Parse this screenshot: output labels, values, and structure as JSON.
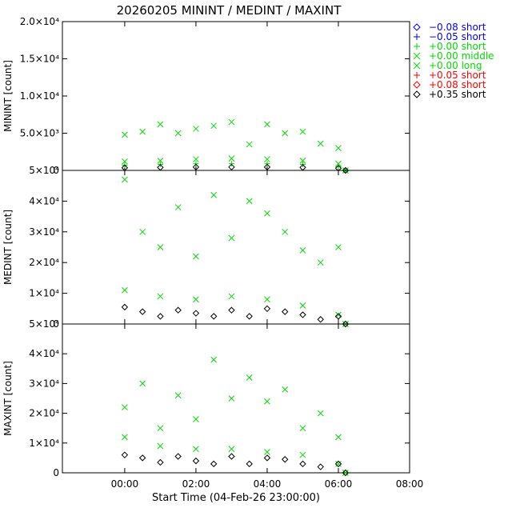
{
  "chart_data": {
    "type": "scatter",
    "title": "20260205 MININT / MEDINT / MAXINT",
    "xlabel": "Start Time (04-Feb-26 23:00:00)",
    "xlim": [
      -0.75,
      9.0
    ],
    "x_ticks": [
      {
        "value": 1,
        "label": "00:00"
      },
      {
        "value": 3,
        "label": "02:00"
      },
      {
        "value": 5,
        "label": "04:00"
      },
      {
        "value": 7,
        "label": "06:00"
      },
      {
        "value": 9,
        "label": "08:00"
      }
    ],
    "legend": {
      "placement": "right",
      "entries": [
        {
          "marker": "diamond",
          "color": "#0000ff",
          "label": "−0.08 short"
        },
        {
          "marker": "plus",
          "color": "#0000ff",
          "label": "−0.05 short"
        },
        {
          "marker": "plus",
          "color": "#00dd00",
          "label": "+0.00 short"
        },
        {
          "marker": "x",
          "color": "#00dd00",
          "label": "+0.00 middle"
        },
        {
          "marker": "x",
          "color": "#00dd00",
          "label": "+0.00 long"
        },
        {
          "marker": "plus",
          "color": "#ff0000",
          "label": "+0.05 short"
        },
        {
          "marker": "diamond",
          "color": "#ff0000",
          "label": "+0.08 short"
        },
        {
          "marker": "diamond",
          "color": "#000000",
          "label": "+0.35 short"
        }
      ]
    },
    "panels": [
      {
        "ylabel": "MININT [count]",
        "ylim": [
          0,
          20000
        ],
        "y_ticks": [
          {
            "value": 0,
            "label": "0"
          },
          {
            "value": 5000,
            "label": "5.0×10³"
          },
          {
            "value": 10000,
            "label": "1.0×10⁴"
          },
          {
            "value": 15000,
            "label": "1.5×10⁴"
          },
          {
            "value": 20000,
            "label": "2.0×10⁴"
          }
        ],
        "series": [
          {
            "name": "+0.00 long",
            "marker": "x",
            "color": "#00dd00",
            "x": [
              1.0,
              1.5,
              2.0,
              2.5,
              3.0,
              3.5,
              4.0,
              4.5,
              5.0,
              5.5,
              6.0,
              6.5,
              7.0,
              7.2
            ],
            "values": [
              4800,
              5200,
              6200,
              5000,
              5600,
              6000,
              6500,
              3500,
              6200,
              5000,
              5200,
              3600,
              3000,
              0
            ]
          },
          {
            "name": "+0.00 middle",
            "marker": "x",
            "color": "#00dd00",
            "x": [
              1.0,
              2.0,
              3.0,
              4.0,
              5.0,
              6.0,
              7.0,
              7.2
            ],
            "values": [
              1200,
              1300,
              1500,
              1600,
              1500,
              1300,
              900,
              0
            ]
          },
          {
            "name": "+0.00 short",
            "marker": "plus",
            "color": "#00dd00",
            "x": [
              1.0,
              2.0,
              3.0,
              4.0,
              5.0,
              6.0,
              7.0,
              7.2
            ],
            "values": [
              700,
              800,
              900,
              900,
              900,
              800,
              500,
              0
            ]
          },
          {
            "name": "+0.35 short",
            "marker": "diamond",
            "color": "#000000",
            "x": [
              1.0,
              2.0,
              3.0,
              4.0,
              5.0,
              6.0,
              7.0,
              7.2
            ],
            "values": [
              350,
              400,
              450,
              450,
              450,
              400,
              300,
              0
            ]
          }
        ]
      },
      {
        "ylabel": "MEDINT [count]",
        "ylim": [
          0,
          50000
        ],
        "y_ticks": [
          {
            "value": 0,
            "label": "0"
          },
          {
            "value": 10000,
            "label": "1×10⁴"
          },
          {
            "value": 20000,
            "label": "2×10⁴"
          },
          {
            "value": 30000,
            "label": "3×10⁴"
          },
          {
            "value": 40000,
            "label": "4×10⁴"
          },
          {
            "value": 50000,
            "label": "5×10⁴"
          }
        ],
        "series": [
          {
            "name": "+0.00 long",
            "marker": "x",
            "color": "#00dd00",
            "x": [
              1.0,
              1.5,
              2.0,
              2.5,
              3.0,
              3.5,
              4.0,
              4.5,
              5.0,
              5.5,
              6.0,
              6.5,
              7.0,
              7.2
            ],
            "values": [
              47000,
              30000,
              25000,
              38000,
              22000,
              42000,
              28000,
              40000,
              36000,
              30000,
              24000,
              20000,
              25000,
              0
            ]
          },
          {
            "name": "+0.00 middle",
            "marker": "x",
            "color": "#00dd00",
            "x": [
              1.0,
              2.0,
              3.0,
              4.0,
              5.0,
              6.0,
              7.0,
              7.2
            ],
            "values": [
              11000,
              9000,
              8000,
              9000,
              8000,
              6000,
              3000,
              0
            ]
          },
          {
            "name": "+0.35 short",
            "marker": "diamond",
            "color": "#000000",
            "x": [
              1.0,
              1.5,
              2.0,
              2.5,
              3.0,
              3.5,
              4.0,
              4.5,
              5.0,
              5.5,
              6.0,
              6.5,
              7.0,
              7.2
            ],
            "values": [
              5500,
              4000,
              2500,
              4500,
              3500,
              2500,
              4500,
              2500,
              5000,
              4000,
              3000,
              1500,
              2500,
              0
            ]
          }
        ]
      },
      {
        "ylabel": "MAXINT [count]",
        "ylim": [
          0,
          50000
        ],
        "y_ticks": [
          {
            "value": 0,
            "label": "0"
          },
          {
            "value": 10000,
            "label": "1×10⁴"
          },
          {
            "value": 20000,
            "label": "2×10⁴"
          },
          {
            "value": 30000,
            "label": "3×10⁴"
          },
          {
            "value": 40000,
            "label": "4×10⁴"
          },
          {
            "value": 50000,
            "label": "5×10⁴"
          }
        ],
        "series": [
          {
            "name": "+0.00 long",
            "marker": "x",
            "color": "#00dd00",
            "x": [
              1.0,
              1.5,
              2.0,
              2.5,
              3.0,
              3.5,
              4.0,
              4.5,
              5.0,
              5.5,
              6.0,
              6.5,
              7.0,
              7.2
            ],
            "values": [
              22000,
              30000,
              15000,
              26000,
              18000,
              38000,
              25000,
              32000,
              24000,
              28000,
              15000,
              20000,
              12000,
              0
            ]
          },
          {
            "name": "+0.00 middle",
            "marker": "x",
            "color": "#00dd00",
            "x": [
              1.0,
              2.0,
              3.0,
              4.0,
              5.0,
              6.0,
              7.0,
              7.2
            ],
            "values": [
              12000,
              9000,
              8000,
              8000,
              7000,
              6000,
              3000,
              0
            ]
          },
          {
            "name": "+0.35 short",
            "marker": "diamond",
            "color": "#000000",
            "x": [
              1.0,
              1.5,
              2.0,
              2.5,
              3.0,
              3.5,
              4.0,
              4.5,
              5.0,
              5.5,
              6.0,
              6.5,
              7.0,
              7.2
            ],
            "values": [
              6000,
              5000,
              3500,
              5500,
              4000,
              3000,
              5500,
              3000,
              5000,
              4500,
              3000,
              2000,
              3000,
              0
            ]
          }
        ]
      }
    ]
  }
}
